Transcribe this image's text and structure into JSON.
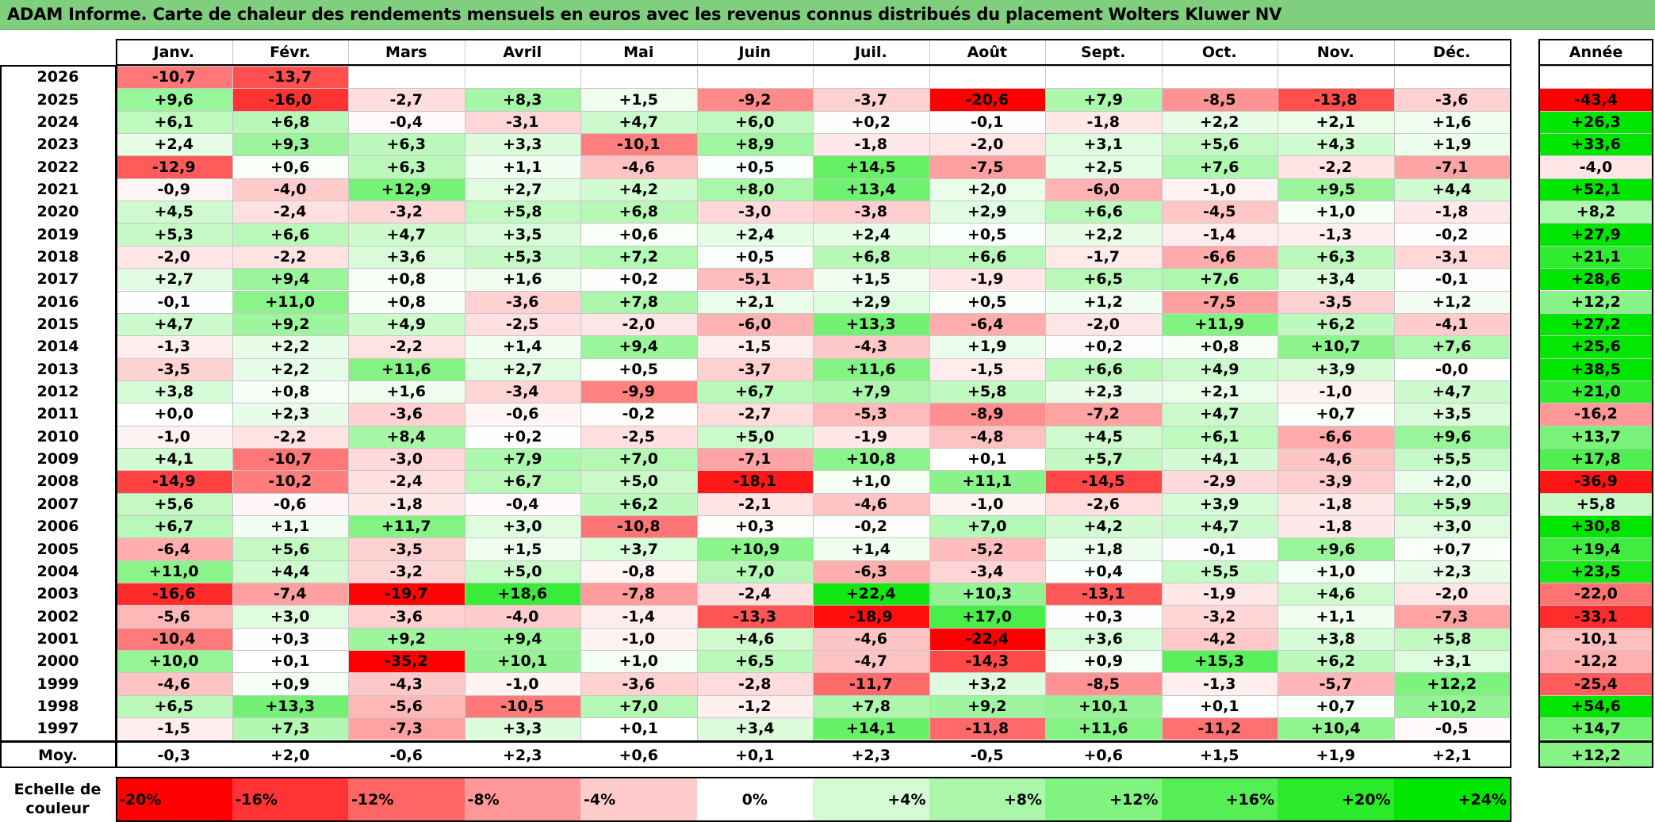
{
  "title": "ADAM Informe. Carte de chaleur des rendements mensuels en euros avec les revenus connus distribués du placement Wolters Kluwer NV",
  "chart_data": {
    "type": "heatmap",
    "title": "ADAM Informe. Carte de chaleur des rendements mensuels en euros avec les revenus connus distribués du placement Wolters Kluwer NV",
    "months": [
      "Janv.",
      "Févr.",
      "Mars",
      "Avril",
      "Mai",
      "Juin",
      "Juil.",
      "Août",
      "Sept.",
      "Oct.",
      "Nov.",
      "Déc."
    ],
    "year_header": "Année",
    "rows": [
      {
        "year": "2026",
        "values": [
          "-10,7",
          "-13,7",
          "",
          "",
          "",
          "",
          "",
          "",
          "",
          "",
          "",
          ""
        ],
        "annual": ""
      },
      {
        "year": "2025",
        "values": [
          "+9,6",
          "-16,0",
          "-2,7",
          "+8,3",
          "+1,5",
          "-9,2",
          "-3,7",
          "-20,6",
          "+7,9",
          "-8,5",
          "-13,8",
          "-3,6"
        ],
        "annual": "-43,4"
      },
      {
        "year": "2024",
        "values": [
          "+6,1",
          "+6,8",
          "-0,4",
          "-3,1",
          "+4,7",
          "+6,0",
          "+0,2",
          "-0,1",
          "-1,8",
          "+2,2",
          "+2,1",
          "+1,6"
        ],
        "annual": "+26,3"
      },
      {
        "year": "2023",
        "values": [
          "+2,4",
          "+9,3",
          "+6,3",
          "+3,3",
          "-10,1",
          "+8,9",
          "-1,8",
          "-2,0",
          "+3,1",
          "+5,6",
          "+4,3",
          "+1,9"
        ],
        "annual": "+33,6"
      },
      {
        "year": "2022",
        "values": [
          "-12,9",
          "+0,6",
          "+6,3",
          "+1,1",
          "-4,6",
          "+0,5",
          "+14,5",
          "-7,5",
          "+2,5",
          "+7,6",
          "-2,2",
          "-7,1"
        ],
        "annual": "-4,0"
      },
      {
        "year": "2021",
        "values": [
          "-0,9",
          "-4,0",
          "+12,9",
          "+2,7",
          "+4,2",
          "+8,0",
          "+13,4",
          "+2,0",
          "-6,0",
          "-1,0",
          "+9,5",
          "+4,4"
        ],
        "annual": "+52,1"
      },
      {
        "year": "2020",
        "values": [
          "+4,5",
          "-2,4",
          "-3,2",
          "+5,8",
          "+6,8",
          "-3,0",
          "-3,8",
          "+2,9",
          "+6,6",
          "-4,5",
          "+1,0",
          "-1,8"
        ],
        "annual": "+8,2"
      },
      {
        "year": "2019",
        "values": [
          "+5,3",
          "+6,6",
          "+4,7",
          "+3,5",
          "+0,6",
          "+2,4",
          "+2,4",
          "+0,5",
          "+2,2",
          "-1,4",
          "-1,3",
          "-0,2"
        ],
        "annual": "+27,9"
      },
      {
        "year": "2018",
        "values": [
          "-2,0",
          "-2,2",
          "+3,6",
          "+5,3",
          "+7,2",
          "+0,5",
          "+6,8",
          "+6,6",
          "-1,7",
          "-6,6",
          "+6,3",
          "-3,1"
        ],
        "annual": "+21,1"
      },
      {
        "year": "2017",
        "values": [
          "+2,7",
          "+9,4",
          "+0,8",
          "+1,6",
          "+0,2",
          "-5,1",
          "+1,5",
          "-1,9",
          "+6,5",
          "+7,6",
          "+3,4",
          "-0,1"
        ],
        "annual": "+28,6"
      },
      {
        "year": "2016",
        "values": [
          "-0,1",
          "+11,0",
          "+0,8",
          "-3,6",
          "+7,8",
          "+2,1",
          "+2,9",
          "+0,5",
          "+1,2",
          "-7,5",
          "-3,5",
          "+1,2"
        ],
        "annual": "+12,2"
      },
      {
        "year": "2015",
        "values": [
          "+4,7",
          "+9,2",
          "+4,9",
          "-2,5",
          "-2,0",
          "-6,0",
          "+13,3",
          "-6,4",
          "-2,0",
          "+11,9",
          "+6,2",
          "-4,1"
        ],
        "annual": "+27,2"
      },
      {
        "year": "2014",
        "values": [
          "-1,3",
          "+2,2",
          "-2,2",
          "+1,4",
          "+9,4",
          "-1,5",
          "-4,3",
          "+1,9",
          "+0,2",
          "+0,8",
          "+10,7",
          "+7,6"
        ],
        "annual": "+25,6"
      },
      {
        "year": "2013",
        "values": [
          "-3,5",
          "+2,2",
          "+11,6",
          "+2,7",
          "+0,5",
          "-3,7",
          "+11,6",
          "-1,5",
          "+6,6",
          "+4,9",
          "+3,9",
          "-0,0"
        ],
        "annual": "+38,5"
      },
      {
        "year": "2012",
        "values": [
          "+3,8",
          "+0,8",
          "+1,6",
          "-3,4",
          "-9,9",
          "+6,7",
          "+7,9",
          "+5,8",
          "+2,3",
          "+2,1",
          "-1,0",
          "+4,7"
        ],
        "annual": "+21,0"
      },
      {
        "year": "2011",
        "values": [
          "+0,0",
          "+2,3",
          "-3,6",
          "-0,6",
          "-0,2",
          "-2,7",
          "-5,3",
          "-8,9",
          "-7,2",
          "+4,7",
          "+0,7",
          "+3,5"
        ],
        "annual": "-16,2"
      },
      {
        "year": "2010",
        "values": [
          "-1,0",
          "-2,2",
          "+8,4",
          "+0,2",
          "-2,5",
          "+5,0",
          "-1,9",
          "-4,8",
          "+4,5",
          "+6,1",
          "-6,6",
          "+9,6"
        ],
        "annual": "+13,7"
      },
      {
        "year": "2009",
        "values": [
          "+4,1",
          "-10,7",
          "-3,0",
          "+7,9",
          "+7,0",
          "-7,1",
          "+10,8",
          "+0,1",
          "+5,7",
          "+4,1",
          "-4,6",
          "+5,5"
        ],
        "annual": "+17,8"
      },
      {
        "year": "2008",
        "values": [
          "-14,9",
          "-10,2",
          "-2,4",
          "+6,7",
          "+5,0",
          "-18,1",
          "+1,0",
          "+11,1",
          "-14,5",
          "-2,9",
          "-3,9",
          "+2,0"
        ],
        "annual": "-36,9"
      },
      {
        "year": "2007",
        "values": [
          "+5,6",
          "-0,6",
          "-1,8",
          "-0,4",
          "+6,2",
          "-2,1",
          "-4,6",
          "-1,0",
          "-2,6",
          "+3,9",
          "-1,8",
          "+5,9"
        ],
        "annual": "+5,8"
      },
      {
        "year": "2006",
        "values": [
          "+6,7",
          "+1,1",
          "+11,7",
          "+3,0",
          "-10,8",
          "+0,3",
          "-0,2",
          "+7,0",
          "+4,2",
          "+4,7",
          "-1,8",
          "+3,0"
        ],
        "annual": "+30,8"
      },
      {
        "year": "2005",
        "values": [
          "-6,4",
          "+5,6",
          "-3,5",
          "+1,5",
          "+3,7",
          "+10,9",
          "+1,4",
          "-5,2",
          "+1,8",
          "-0,1",
          "+9,6",
          "+0,7"
        ],
        "annual": "+19,4"
      },
      {
        "year": "2004",
        "values": [
          "+11,0",
          "+4,4",
          "-3,2",
          "+5,0",
          "-0,8",
          "+7,0",
          "-6,3",
          "-3,4",
          "+0,4",
          "+5,5",
          "+1,0",
          "+2,3"
        ],
        "annual": "+23,5"
      },
      {
        "year": "2003",
        "values": [
          "-16,6",
          "-7,4",
          "-19,7",
          "+18,6",
          "-7,8",
          "-2,4",
          "+22,4",
          "+10,3",
          "-13,1",
          "-1,9",
          "+4,6",
          "-2,0"
        ],
        "annual": "-22,0"
      },
      {
        "year": "2002",
        "values": [
          "-5,6",
          "+3,0",
          "-3,6",
          "-4,0",
          "-1,4",
          "-13,3",
          "-18,9",
          "+17,0",
          "+0,3",
          "-3,2",
          "+1,1",
          "-7,3"
        ],
        "annual": "-33,1"
      },
      {
        "year": "2001",
        "values": [
          "-10,4",
          "+0,3",
          "+9,2",
          "+9,4",
          "-1,0",
          "+4,6",
          "-4,6",
          "-22,4",
          "+3,6",
          "-4,2",
          "+3,8",
          "+5,8"
        ],
        "annual": "-10,1"
      },
      {
        "year": "2000",
        "values": [
          "+10,0",
          "+0,1",
          "-35,2",
          "+10,1",
          "+1,0",
          "+6,5",
          "-4,7",
          "-14,3",
          "+0,9",
          "+15,3",
          "+6,2",
          "+3,1"
        ],
        "annual": "-12,2"
      },
      {
        "year": "1999",
        "values": [
          "-4,6",
          "+0,9",
          "-4,3",
          "-1,0",
          "-3,6",
          "-2,8",
          "-11,7",
          "+3,2",
          "-8,5",
          "-1,3",
          "-5,7",
          "+12,2"
        ],
        "annual": "-25,4"
      },
      {
        "year": "1998",
        "values": [
          "+6,5",
          "+13,3",
          "-5,6",
          "-10,5",
          "+7,0",
          "-1,2",
          "+7,8",
          "+9,2",
          "+10,1",
          "+0,1",
          "+0,7",
          "+10,2"
        ],
        "annual": "+54,6"
      },
      {
        "year": "1997",
        "values": [
          "-1,5",
          "+7,3",
          "-7,3",
          "+3,3",
          "+0,1",
          "+3,4",
          "+14,1",
          "-11,8",
          "+11,6",
          "-11,2",
          "+10,4",
          "-0,5"
        ],
        "annual": "+14,7"
      }
    ],
    "average": {
      "label": "Moy.",
      "values": [
        "-0,3",
        "+2,0",
        "-0,6",
        "+2,3",
        "+0,6",
        "+0,1",
        "+2,3",
        "-0,5",
        "+0,6",
        "+1,5",
        "+1,9",
        "+2,1"
      ],
      "annual": "+12,2"
    },
    "scale": {
      "label_line1": "Echelle de",
      "label_line2": "couleur",
      "steps": [
        "-20%",
        "-16%",
        "-12%",
        "-8%",
        "-4%",
        "0%",
        "+4%",
        "+8%",
        "+12%",
        "+16%",
        "+20%",
        "+24%"
      ],
      "step_values": [
        -20,
        -16,
        -12,
        -8,
        -4,
        0,
        4,
        8,
        12,
        16,
        20,
        24
      ]
    },
    "colors": {
      "negative_max": "#ff0000",
      "neutral": "#ffffff",
      "positive_max": "#00e600",
      "title_bar": "#7fcf7f"
    }
  }
}
